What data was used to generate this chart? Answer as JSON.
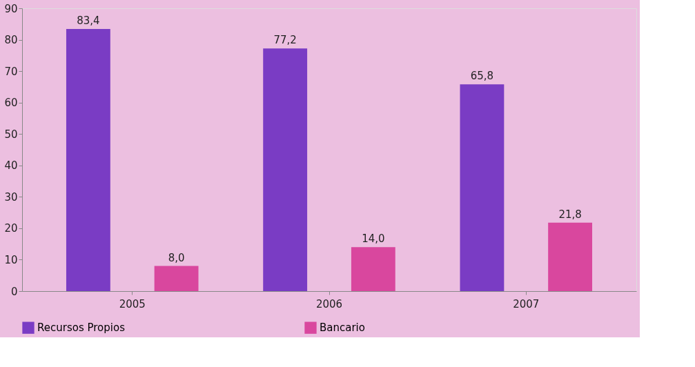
{
  "chart_data": {
    "type": "bar",
    "categories": [
      "2005",
      "2006",
      "2007"
    ],
    "series": [
      {
        "name": "Recursos Propios",
        "color": "#7a3cc4",
        "values": [
          83.4,
          77.2,
          65.8
        ],
        "value_labels": [
          "83,4",
          "77,2",
          "65,8"
        ]
      },
      {
        "name": "Bancario",
        "color": "#d9479e",
        "values": [
          8.0,
          14.0,
          21.8
        ],
        "value_labels": [
          "8,0",
          "14,0",
          "21,8"
        ]
      }
    ],
    "ylim": [
      0,
      90
    ],
    "yticks": [
      0,
      10,
      20,
      30,
      40,
      50,
      60,
      70,
      80,
      90
    ],
    "grid": false,
    "legend": "bottom"
  }
}
